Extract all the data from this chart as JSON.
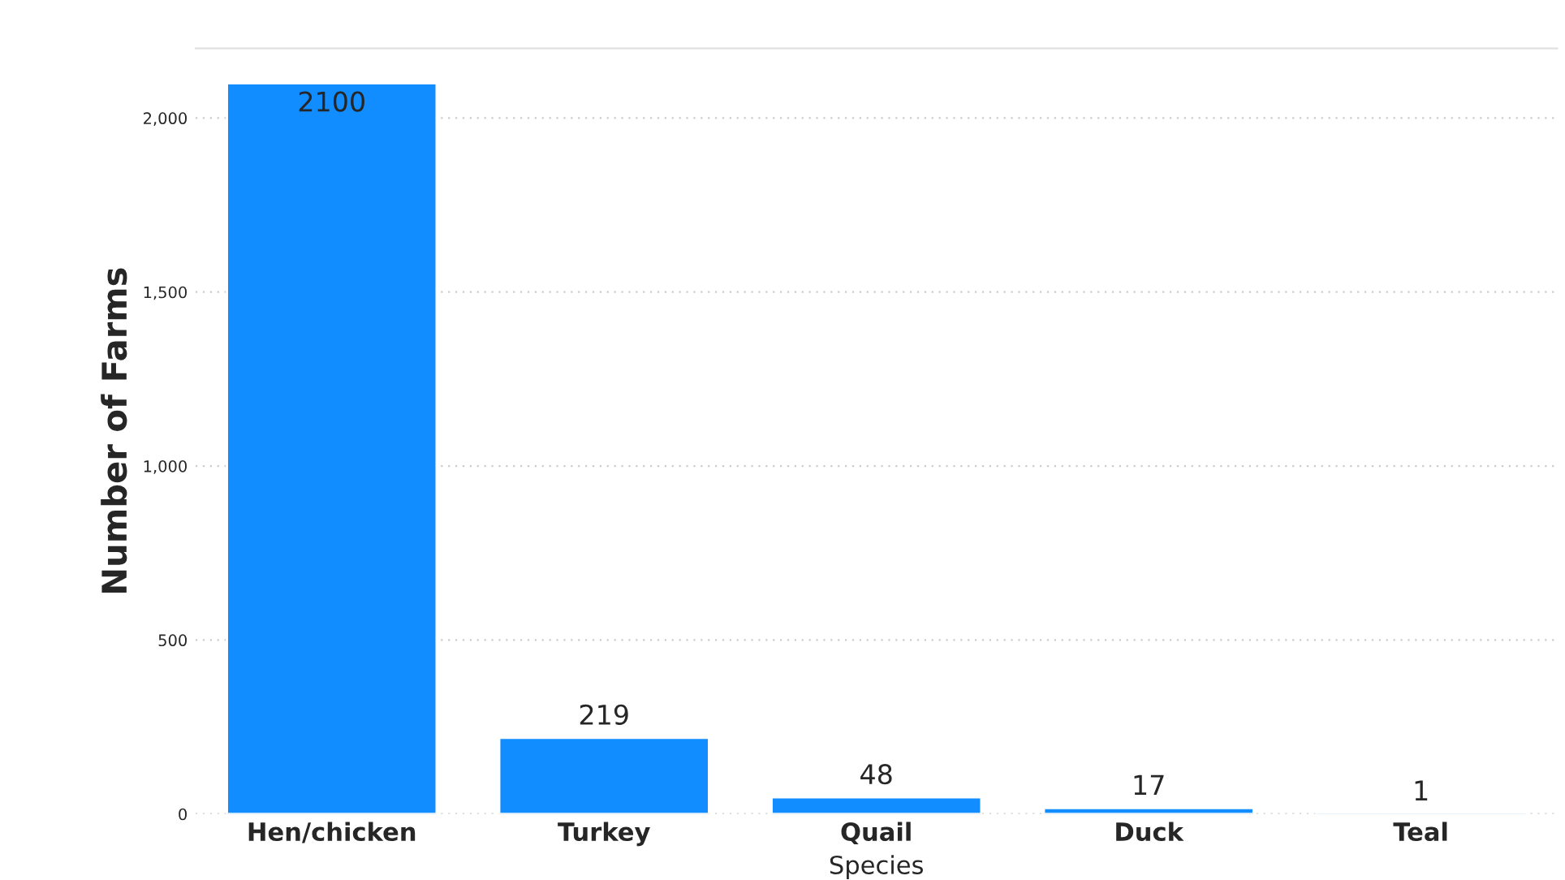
{
  "chart_data": {
    "type": "bar",
    "xlabel": "Species",
    "ylabel": "Number of Farms",
    "categories": [
      "Hen/chicken",
      "Turkey",
      "Quail",
      "Duck",
      "Teal"
    ],
    "values": [
      2100,
      219,
      48,
      17,
      1
    ],
    "color": "#118dff",
    "ylim": [
      0,
      2200
    ],
    "yticks": [
      0,
      {
        "value": 500,
        "label": "500"
      },
      {
        "value": 1000,
        "label": "1,000"
      },
      {
        "value": 1500,
        "label": "1,500"
      },
      {
        "value": 2000,
        "label": "2,000"
      }
    ],
    "grid": "y",
    "data_labels": true
  }
}
